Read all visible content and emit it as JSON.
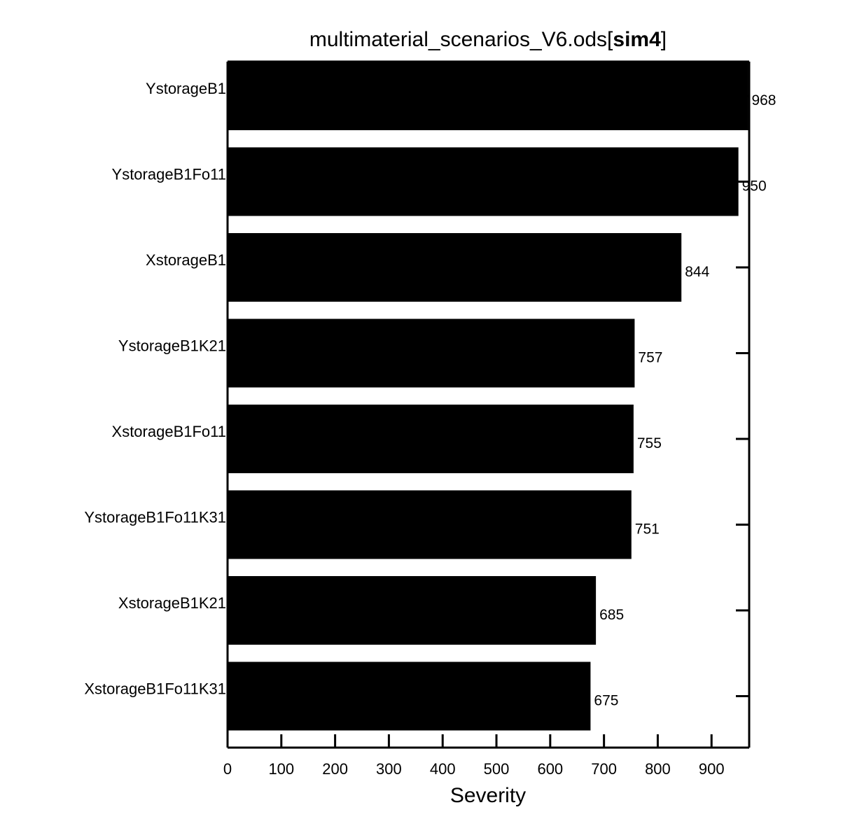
{
  "chart_data": {
    "type": "bar",
    "orientation": "horizontal",
    "title_main": "multimaterial_scenarios_V6.ods[",
    "title_bold": "sim4",
    "title_end": "]",
    "xlabel": "Severity",
    "ylabel": "",
    "xlim": [
      0,
      970
    ],
    "xticks": [
      0,
      100,
      200,
      300,
      400,
      500,
      600,
      700,
      800,
      900
    ],
    "categories": [
      "YstorageB1",
      "YstorageB1Fo11",
      "XstorageB1",
      "YstorageB1K21",
      "XstorageB1Fo11",
      "YstorageB1Fo11K31",
      "XstorageB1K21",
      "XstorageB1Fo11K31"
    ],
    "values": [
      968,
      950,
      844,
      757,
      755,
      751,
      685,
      675
    ],
    "data_labels": [
      "968",
      "950",
      "844",
      "757",
      "755",
      "751",
      "685",
      "675"
    ],
    "bar_color": "#000000",
    "grid": false,
    "legend": "none"
  }
}
